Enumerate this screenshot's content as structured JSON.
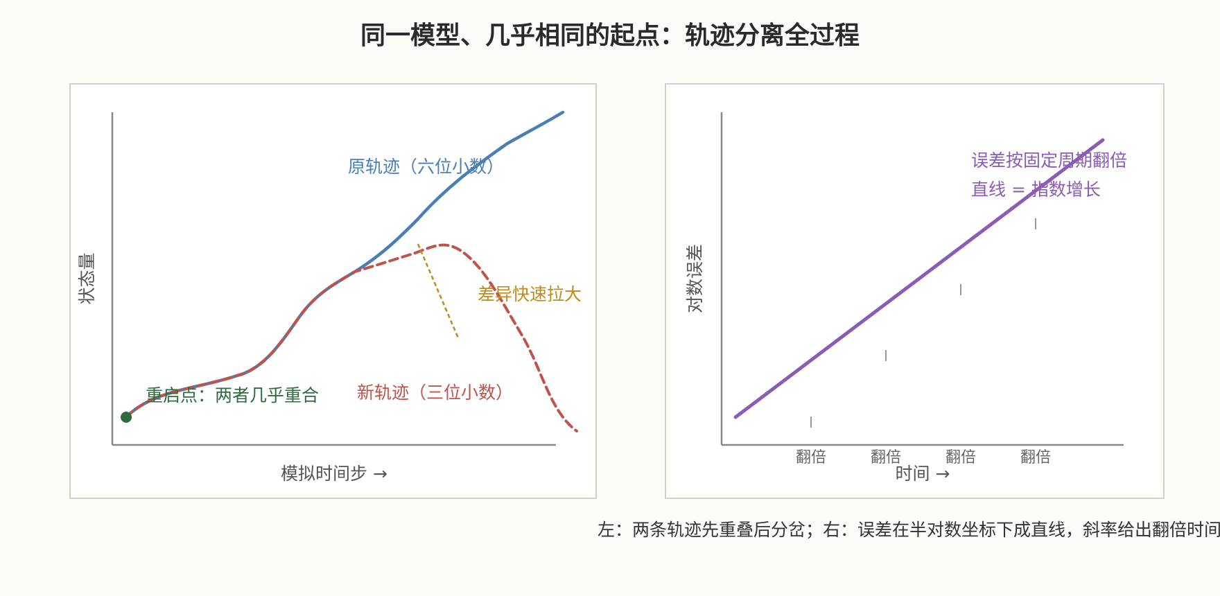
{
  "title": "同一模型、几乎相同的起点：轨迹分离全过程",
  "caption": "左：两条轨迹先重叠后分岔；右：误差在半对数坐标下成直线，斜率给出翻倍时间",
  "colors": {
    "original": "#4a7fb5",
    "new": "#c0524a",
    "restart": "#2e6b3e",
    "divergence": "#c08b1a",
    "error_line": "#8b5cb5",
    "axis": "#888888",
    "text": "#333333"
  },
  "left_panel": {
    "xlabel": "模拟时间步 →",
    "ylabel": "状态量",
    "labels": {
      "original": "原轨迹（六位小数）",
      "new": "新轨迹（三位小数）",
      "restart": "重启点：两者几乎重合",
      "divergence": "差异快速拉大"
    }
  },
  "right_panel": {
    "xlabel": "时间 →",
    "ylabel": "对数误差",
    "tick_label": "翻倍",
    "tick_count": 4,
    "annotation_line1": "误差按固定周期翻倍",
    "annotation_line2": "直线 = 指数增长",
    "annotation_line2_parts": [
      "直线",
      "=",
      "指数增长"
    ]
  }
}
